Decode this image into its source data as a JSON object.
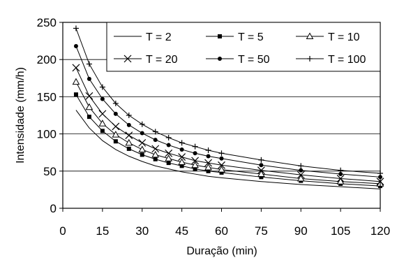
{
  "chart_data": {
    "type": "line",
    "title": "",
    "xlabel": "Duração (min)",
    "ylabel": "Intensidade  (mm/h)",
    "xlim": [
      0,
      120
    ],
    "ylim": [
      0,
      250
    ],
    "x_ticks": [
      "0",
      "15",
      "30",
      "45",
      "60",
      "75",
      "90",
      "105",
      "120"
    ],
    "y_ticks": [
      "0",
      "50",
      "100",
      "150",
      "200",
      "250"
    ],
    "grid": "horizontal",
    "legend_position": "top-right",
    "x": [
      5,
      10,
      15,
      20,
      25,
      30,
      35,
      40,
      45,
      50,
      55,
      60,
      75,
      90,
      105,
      120
    ],
    "series": [
      {
        "name": "T = 2",
        "marker": "none",
        "values": [
          132,
          108,
          91,
          79,
          70,
          63,
          57,
          53,
          49,
          46,
          43,
          41,
          36,
          32,
          29,
          26
        ]
      },
      {
        "name": "T = 5",
        "marker": "square",
        "values": [
          153,
          123,
          104,
          90,
          80,
          72,
          66,
          61,
          57,
          53,
          50,
          48,
          42,
          37,
          33,
          30
        ]
      },
      {
        "name": "T = 10",
        "marker": "triangle",
        "values": [
          170,
          136,
          114,
          99,
          88,
          79,
          72,
          67,
          62,
          58,
          55,
          52,
          46,
          40,
          36,
          33
        ]
      },
      {
        "name": "T = 20",
        "marker": "x",
        "values": [
          189,
          151,
          127,
          110,
          98,
          88,
          80,
          74,
          69,
          64,
          61,
          58,
          51,
          45,
          40,
          36
        ]
      },
      {
        "name": "T = 50",
        "marker": "dot",
        "values": [
          218,
          174,
          147,
          127,
          112,
          101,
          92,
          85,
          79,
          74,
          70,
          67,
          58,
          51,
          46,
          42
        ]
      },
      {
        "name": "T = 100",
        "marker": "plus",
        "values": [
          242,
          194,
          163,
          141,
          125,
          113,
          103,
          95,
          88,
          83,
          78,
          74,
          65,
          57,
          51,
          47
        ]
      }
    ]
  }
}
